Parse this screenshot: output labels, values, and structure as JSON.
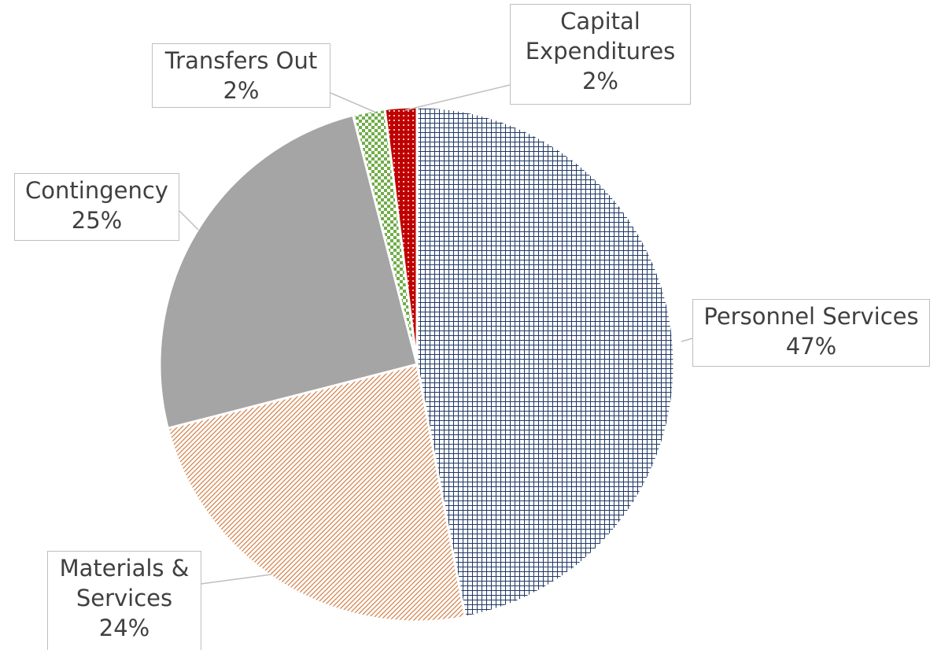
{
  "chart_data": {
    "type": "pie",
    "categories": [
      "Personnel Services",
      "Materials & Services",
      "Contingency",
      "Transfers Out",
      "Capital Expenditures"
    ],
    "values": [
      47,
      24,
      25,
      2,
      2
    ],
    "value_labels": [
      "47%",
      "24%",
      "25%",
      "2%",
      "2%"
    ],
    "colors": [
      "#1f3864",
      "#c55a11",
      "#a5a5a5",
      "#70ad47",
      "#c00000"
    ]
  }
}
